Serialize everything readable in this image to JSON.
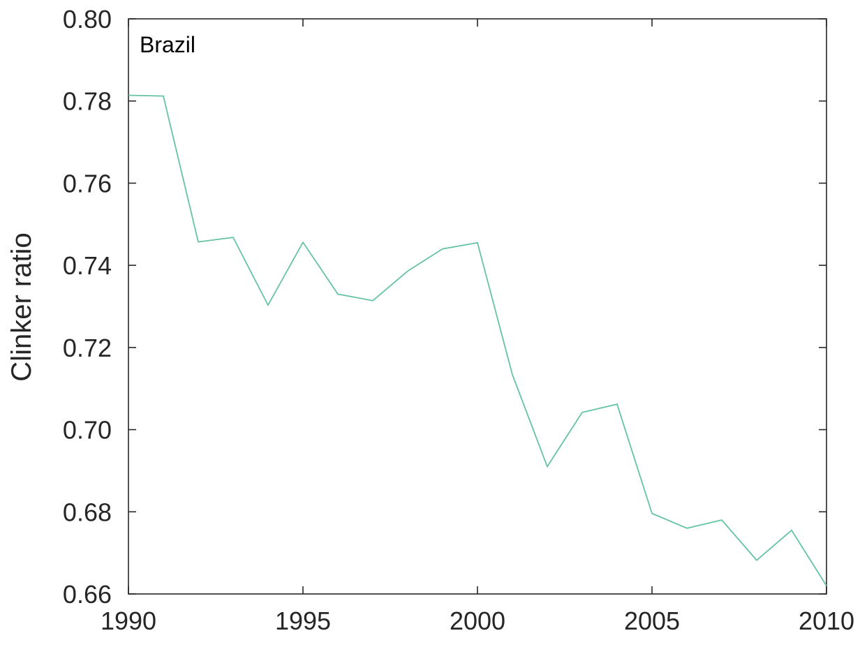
{
  "chart_data": {
    "type": "line",
    "title": "",
    "annotation": "Brazil",
    "xlabel": "",
    "ylabel": "Clinker ratio",
    "xlim": [
      1990,
      2010
    ],
    "ylim": [
      0.66,
      0.8
    ],
    "x_ticks": [
      1990,
      1995,
      2000,
      2005,
      2010
    ],
    "x_tick_labels": [
      "1990",
      "1995",
      "2000",
      "2005",
      "2010"
    ],
    "y_ticks": [
      0.66,
      0.68,
      0.7,
      0.72,
      0.74,
      0.76,
      0.78,
      0.8
    ],
    "y_tick_labels": [
      "0.66",
      "0.68",
      "0.70",
      "0.72",
      "0.74",
      "0.76",
      "0.78",
      "0.80"
    ],
    "grid": false,
    "box": true,
    "x": [
      1990,
      1991,
      1992,
      1993,
      1994,
      1995,
      1996,
      1997,
      1998,
      1999,
      2000,
      2001,
      2002,
      2003,
      2004,
      2005,
      2006,
      2007,
      2008,
      2009,
      2010
    ],
    "series": [
      {
        "values": [
          0.7814,
          0.7812,
          0.7457,
          0.7468,
          0.7303,
          0.7456,
          0.733,
          0.7314,
          0.7386,
          0.744,
          0.7455,
          0.7134,
          0.691,
          0.7042,
          0.7062,
          0.6796,
          0.676,
          0.678,
          0.6682,
          0.6755,
          0.662
        ],
        "color": "#66c2a5"
      }
    ],
    "axis_color": "#262626"
  }
}
